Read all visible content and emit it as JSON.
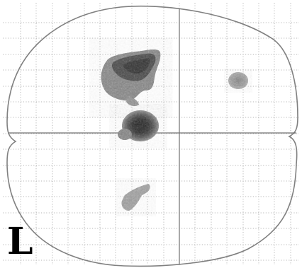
{
  "orientation_label": "L",
  "colors": {
    "background": "#ffffff",
    "outline": "#808080",
    "grid": "#b5b5b5",
    "crosshair": "#707070",
    "blob_dark": "#141414",
    "blob_mid": "#5a5a5a",
    "blob_light": "#a6a6a6",
    "label": "#000000"
  },
  "view": {
    "type": "glass-brain-projection",
    "grid": true,
    "crosshair": true
  }
}
